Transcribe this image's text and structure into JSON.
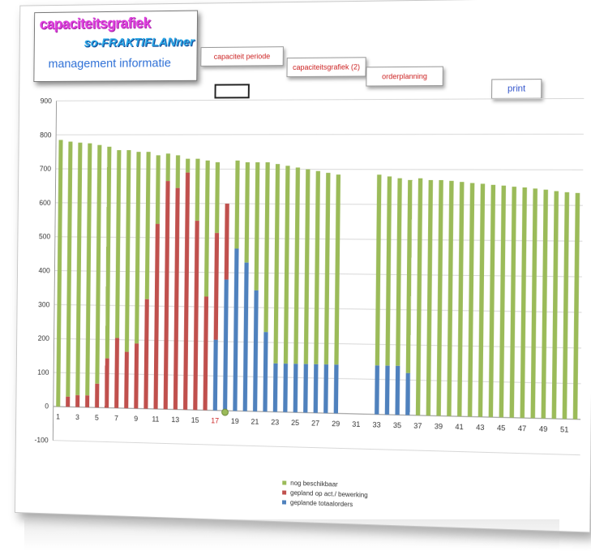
{
  "header": {
    "title_line1": "capaciteitsgrafiek",
    "title_line2": "so-FRAKTIFLANner",
    "title_line3": "management informatie"
  },
  "nav": {
    "tab_capaciteit_periode": "capaciteit periode",
    "tab_capaciteitsgrafiek2": "capaciteitsgrafiek (2)",
    "tab_orderplanning": "orderplanning",
    "print_label": "print"
  },
  "chart_data": {
    "type": "bar",
    "stacked": true,
    "x": [
      1,
      2,
      3,
      4,
      5,
      6,
      7,
      8,
      9,
      10,
      11,
      12,
      13,
      14,
      15,
      16,
      17,
      18,
      19,
      20,
      21,
      22,
      23,
      24,
      25,
      26,
      27,
      28,
      29,
      30,
      31,
      32,
      33,
      34,
      35,
      36,
      37,
      38,
      39,
      40,
      41,
      42,
      43,
      44,
      45,
      46,
      47,
      48,
      49,
      50,
      51,
      52
    ],
    "xticks": [
      1,
      3,
      5,
      7,
      9,
      11,
      13,
      15,
      17,
      19,
      21,
      23,
      25,
      27,
      29,
      31,
      33,
      35,
      37,
      39,
      41,
      43,
      45,
      47,
      49,
      51
    ],
    "highlight_tick": 17,
    "ylim": [
      -100,
      900
    ],
    "yticks": [
      -100,
      0,
      100,
      200,
      300,
      400,
      500,
      600,
      700,
      800,
      900
    ],
    "series": [
      {
        "name": "geplande totaalorders",
        "color": "#4f81bd",
        "values": [
          0,
          0,
          0,
          0,
          0,
          0,
          0,
          0,
          0,
          0,
          0,
          0,
          0,
          0,
          0,
          0,
          205,
          380,
          470,
          430,
          350,
          230,
          140,
          140,
          140,
          140,
          140,
          140,
          140,
          0,
          0,
          0,
          140,
          140,
          140,
          120,
          0,
          0,
          0,
          0,
          0,
          0,
          0,
          0,
          0,
          0,
          0,
          0,
          0,
          0,
          0,
          0
        ]
      },
      {
        "name": "gepland op act./ bewerking",
        "color": "#c0504d",
        "values": [
          0,
          30,
          35,
          35,
          70,
          145,
          205,
          165,
          190,
          320,
          540,
          665,
          645,
          690,
          550,
          330,
          310,
          220,
          0,
          0,
          0,
          0,
          0,
          0,
          0,
          0,
          0,
          0,
          0,
          0,
          0,
          0,
          0,
          0,
          0,
          0,
          0,
          0,
          0,
          0,
          0,
          0,
          0,
          0,
          0,
          0,
          0,
          0,
          0,
          0,
          0,
          0
        ]
      },
      {
        "name": "nog beschikbaar",
        "color": "#9bbb59",
        "values": [
          785,
          750,
          742,
          740,
          700,
          620,
          550,
          590,
          560,
          430,
          200,
          80,
          95,
          40,
          180,
          395,
          205,
          0,
          255,
          290,
          370,
          490,
          575,
          570,
          565,
          560,
          555,
          550,
          545,
          0,
          0,
          0,
          545,
          540,
          535,
          550,
          675,
          670,
          670,
          668,
          665,
          662,
          660,
          657,
          655,
          652,
          650,
          647,
          644,
          640,
          637,
          635
        ]
      }
    ]
  }
}
